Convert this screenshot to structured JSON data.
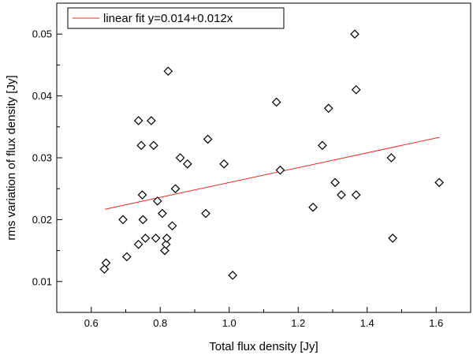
{
  "chart_data": {
    "type": "scatter",
    "xlabel": "Total flux density [Jy]",
    "ylabel": "rms variation of flux density [Jy]",
    "xlim": [
      0.5,
      1.7
    ],
    "ylim": [
      0.005,
      0.055
    ],
    "xticks": [
      "0.6",
      "0.8",
      "1.0",
      "1.2",
      "1.4",
      "1.6"
    ],
    "yticks": [
      "0.01",
      "0.02",
      "0.03",
      "0.04",
      "0.05"
    ],
    "xtick_values": [
      0.6,
      0.8,
      1.0,
      1.2,
      1.4,
      1.6
    ],
    "ytick_values": [
      0.01,
      0.02,
      0.03,
      0.04,
      0.05
    ],
    "grid": false,
    "legend_position": "top-left",
    "legend": [
      {
        "label": "linear fit y=0.014+0.012x",
        "color": "#e8282b"
      }
    ],
    "marker": "open-diamond",
    "marker_color": "#000000",
    "points": [
      {
        "x": 0.638,
        "y": 0.012
      },
      {
        "x": 0.643,
        "y": 0.013
      },
      {
        "x": 0.692,
        "y": 0.02
      },
      {
        "x": 0.703,
        "y": 0.014
      },
      {
        "x": 0.737,
        "y": 0.016
      },
      {
        "x": 0.737,
        "y": 0.036
      },
      {
        "x": 0.745,
        "y": 0.032
      },
      {
        "x": 0.748,
        "y": 0.024
      },
      {
        "x": 0.75,
        "y": 0.02
      },
      {
        "x": 0.757,
        "y": 0.017
      },
      {
        "x": 0.774,
        "y": 0.036
      },
      {
        "x": 0.781,
        "y": 0.032
      },
      {
        "x": 0.787,
        "y": 0.017
      },
      {
        "x": 0.792,
        "y": 0.023
      },
      {
        "x": 0.806,
        "y": 0.021
      },
      {
        "x": 0.813,
        "y": 0.015
      },
      {
        "x": 0.817,
        "y": 0.016
      },
      {
        "x": 0.819,
        "y": 0.017
      },
      {
        "x": 0.823,
        "y": 0.044
      },
      {
        "x": 0.835,
        "y": 0.019
      },
      {
        "x": 0.844,
        "y": 0.025
      },
      {
        "x": 0.858,
        "y": 0.03
      },
      {
        "x": 0.879,
        "y": 0.029
      },
      {
        "x": 0.932,
        "y": 0.021
      },
      {
        "x": 0.938,
        "y": 0.033
      },
      {
        "x": 0.985,
        "y": 0.029
      },
      {
        "x": 1.01,
        "y": 0.011
      },
      {
        "x": 1.137,
        "y": 0.039
      },
      {
        "x": 1.148,
        "y": 0.028
      },
      {
        "x": 1.243,
        "y": 0.022
      },
      {
        "x": 1.27,
        "y": 0.032
      },
      {
        "x": 1.288,
        "y": 0.038
      },
      {
        "x": 1.307,
        "y": 0.026
      },
      {
        "x": 1.325,
        "y": 0.024
      },
      {
        "x": 1.364,
        "y": 0.05
      },
      {
        "x": 1.368,
        "y": 0.041
      },
      {
        "x": 1.368,
        "y": 0.024
      },
      {
        "x": 1.47,
        "y": 0.03
      },
      {
        "x": 1.474,
        "y": 0.017
      },
      {
        "x": 1.609,
        "y": 0.026
      }
    ],
    "fit_line": {
      "label": "linear fit y=0.014+0.012x",
      "intercept": 0.014,
      "slope": 0.012,
      "x_range": [
        0.64,
        1.61
      ],
      "color": "#e8282b"
    }
  }
}
